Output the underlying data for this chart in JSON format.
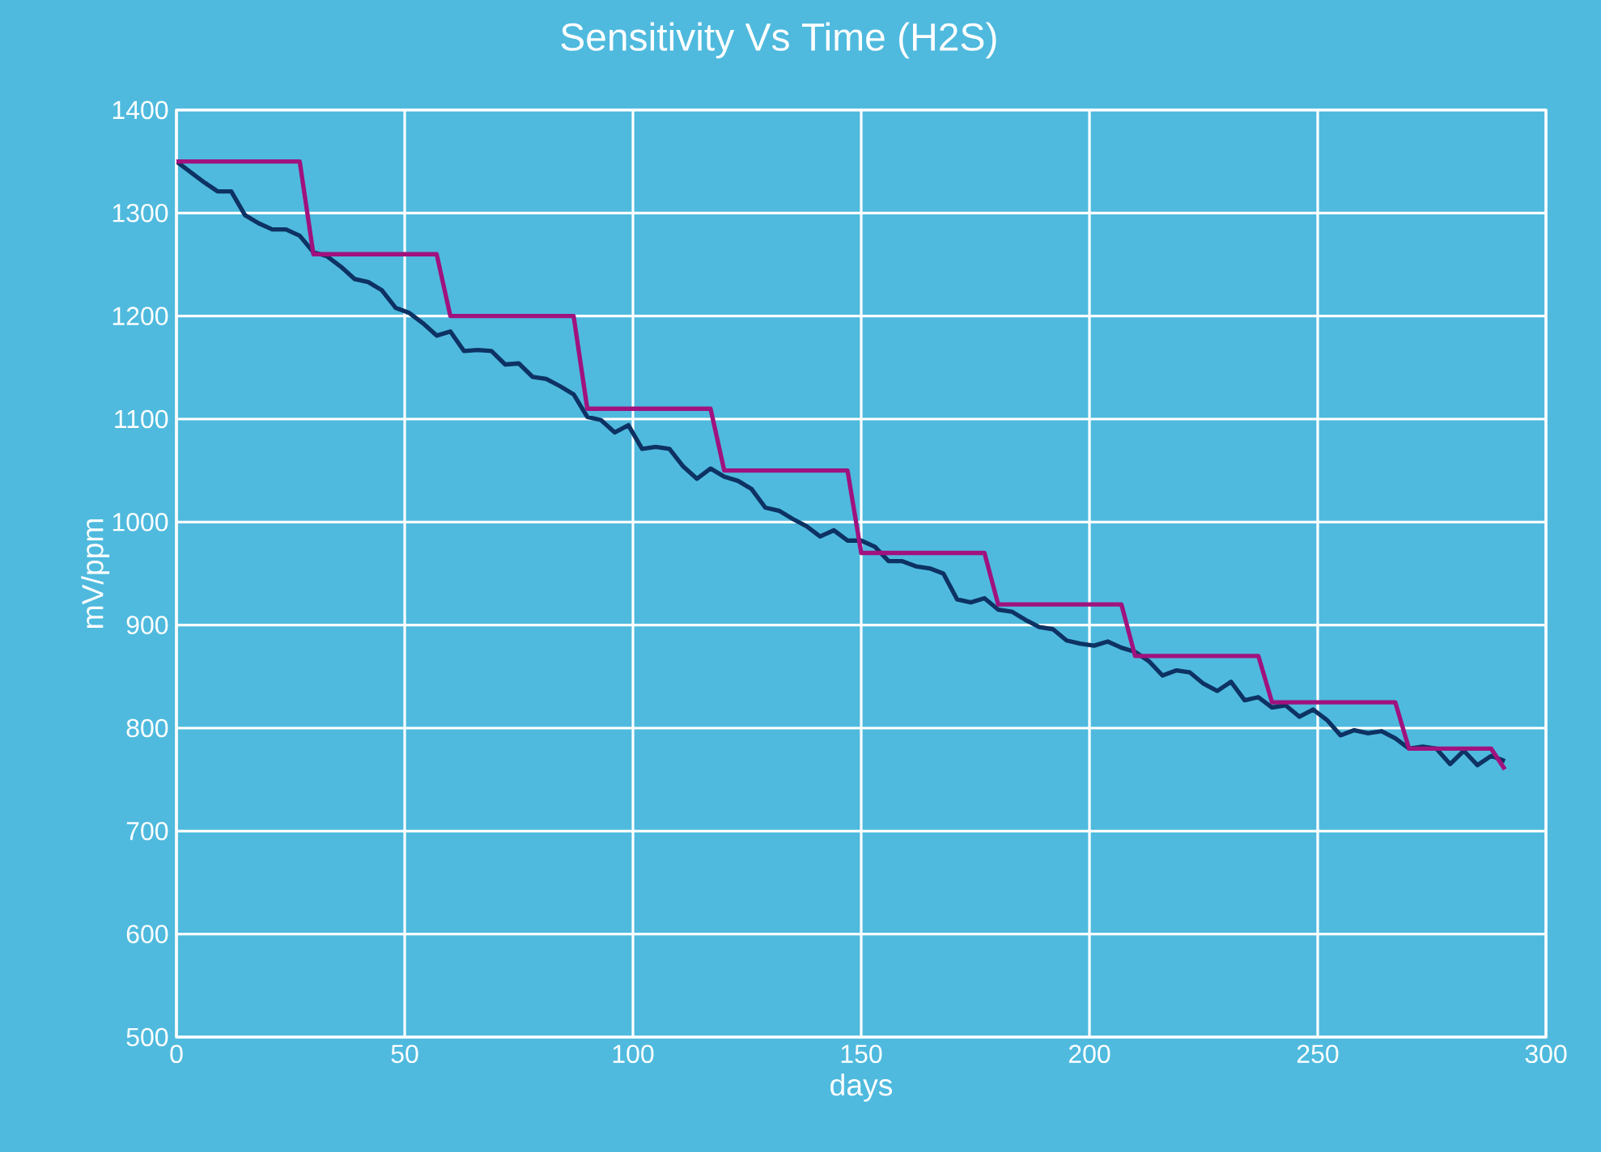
{
  "chart_data": {
    "type": "line",
    "title": "Sensitivity Vs Time (H2S)",
    "xlabel": "days",
    "ylabel": "mV/ppm",
    "xlim": [
      0,
      300
    ],
    "xticks": [
      0,
      50,
      100,
      150,
      200,
      250,
      300
    ],
    "ylim": [
      500,
      1400
    ],
    "yticks": [
      500,
      600,
      700,
      800,
      900,
      1000,
      1100,
      1200,
      1300,
      1400
    ],
    "grid": true,
    "marker": "none",
    "line_style": "solid",
    "series": [
      {
        "color": "#0d3263",
        "x": [
          0,
          3,
          6,
          9,
          12,
          15,
          18,
          21,
          24,
          27,
          30,
          33,
          36,
          39,
          42,
          45,
          48,
          51,
          54,
          57,
          60,
          63,
          66,
          69,
          72,
          75,
          78,
          81,
          84,
          87,
          90,
          93,
          96,
          99,
          102,
          105,
          108,
          111,
          114,
          117,
          120,
          123,
          126,
          129,
          132,
          135,
          138,
          141,
          144,
          147,
          150,
          153,
          156,
          159,
          162,
          165,
          168,
          171,
          174,
          177,
          180,
          183,
          186,
          189,
          192,
          195,
          198,
          201,
          204,
          207,
          210,
          213,
          216,
          219,
          222,
          225,
          228,
          231,
          234,
          237,
          240,
          243,
          246,
          249,
          252,
          255,
          258,
          261,
          264,
          267,
          270,
          273,
          276,
          279,
          282,
          285,
          288,
          291
        ],
        "values": [
          1350,
          1340,
          1330,
          1321,
          1321,
          1298,
          1290,
          1284,
          1284,
          1278,
          1262,
          1258,
          1248,
          1236,
          1233,
          1225,
          1208,
          1203,
          1193,
          1181,
          1185,
          1166,
          1167,
          1166,
          1153,
          1154,
          1141,
          1139,
          1132,
          1124,
          1102,
          1099,
          1087,
          1094,
          1071,
          1073,
          1071,
          1054,
          1042,
          1052,
          1044,
          1040,
          1032,
          1014,
          1011,
          1003,
          996,
          986,
          992,
          982,
          982,
          976,
          962,
          962,
          957,
          955,
          950,
          925,
          922,
          926,
          915,
          913,
          905,
          898,
          896,
          885,
          882,
          880,
          884,
          878,
          874,
          865,
          851,
          856,
          854,
          843,
          836,
          845,
          827,
          830,
          820,
          822,
          811,
          818,
          808,
          793,
          798,
          795,
          797,
          790,
          780,
          782,
          780,
          765,
          778,
          764,
          773,
          768
        ]
      },
      {
        "color": "#a0127e",
        "x": [
          0,
          27,
          30,
          57,
          60,
          87,
          90,
          117,
          120,
          147,
          150,
          177,
          180,
          207,
          210,
          237,
          240,
          267,
          270,
          288,
          291
        ],
        "values": [
          1350,
          1350,
          1260,
          1260,
          1200,
          1200,
          1110,
          1110,
          1050,
          1050,
          970,
          970,
          920,
          920,
          870,
          870,
          825,
          825,
          780,
          780,
          760
        ]
      }
    ]
  }
}
